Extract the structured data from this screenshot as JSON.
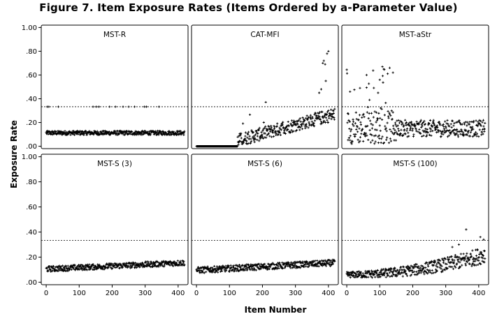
{
  "title": "Figure 7. Item Exposure Rates (Items Ordered by a-Parameter Value)",
  "chart_data": {
    "type": "scatter",
    "xlabel": "Item Number",
    "ylabel": "Exposure Rate",
    "xlim": [
      -15,
      430
    ],
    "ylim": [
      -0.02,
      1.02
    ],
    "xticks": [
      0,
      100,
      200,
      300,
      400
    ],
    "yticks": [
      0.0,
      0.2,
      0.4,
      0.6,
      0.8,
      1.0
    ],
    "ytick_labels": [
      ".00",
      ".20",
      ".40",
      ".60",
      ".80",
      "1.00"
    ],
    "reference_line_y": 0.333,
    "panels": [
      {
        "name": "MST-R",
        "items": 420,
        "pattern": "mstr",
        "description": "Most items near .10-.13; 14 items at .333"
      },
      {
        "name": "CAT-MFI",
        "items": 420,
        "pattern": "catmfi",
        "description": "Items 0-120 at .00; rising to ~.25-.35 by item 420; max ~.80"
      },
      {
        "name": "MST-aStr",
        "items": 420,
        "pattern": "mstastr",
        "description": "Wide scatter .00-.67 for items 0-150; ~.10-.20 afterwards"
      },
      {
        "name": "MST-S (3)",
        "items": 420,
        "pattern": "flat",
        "base": 0.105,
        "slope": 0.05,
        "spread": 0.045
      },
      {
        "name": "MST-S (6)",
        "items": 420,
        "pattern": "flat",
        "base": 0.095,
        "slope": 0.06,
        "spread": 0.05
      },
      {
        "name": "MST-S (100)",
        "items": 420,
        "pattern": "rising",
        "base": 0.06,
        "slope": 0.16,
        "spread": 0.09,
        "max": 0.42
      }
    ]
  }
}
